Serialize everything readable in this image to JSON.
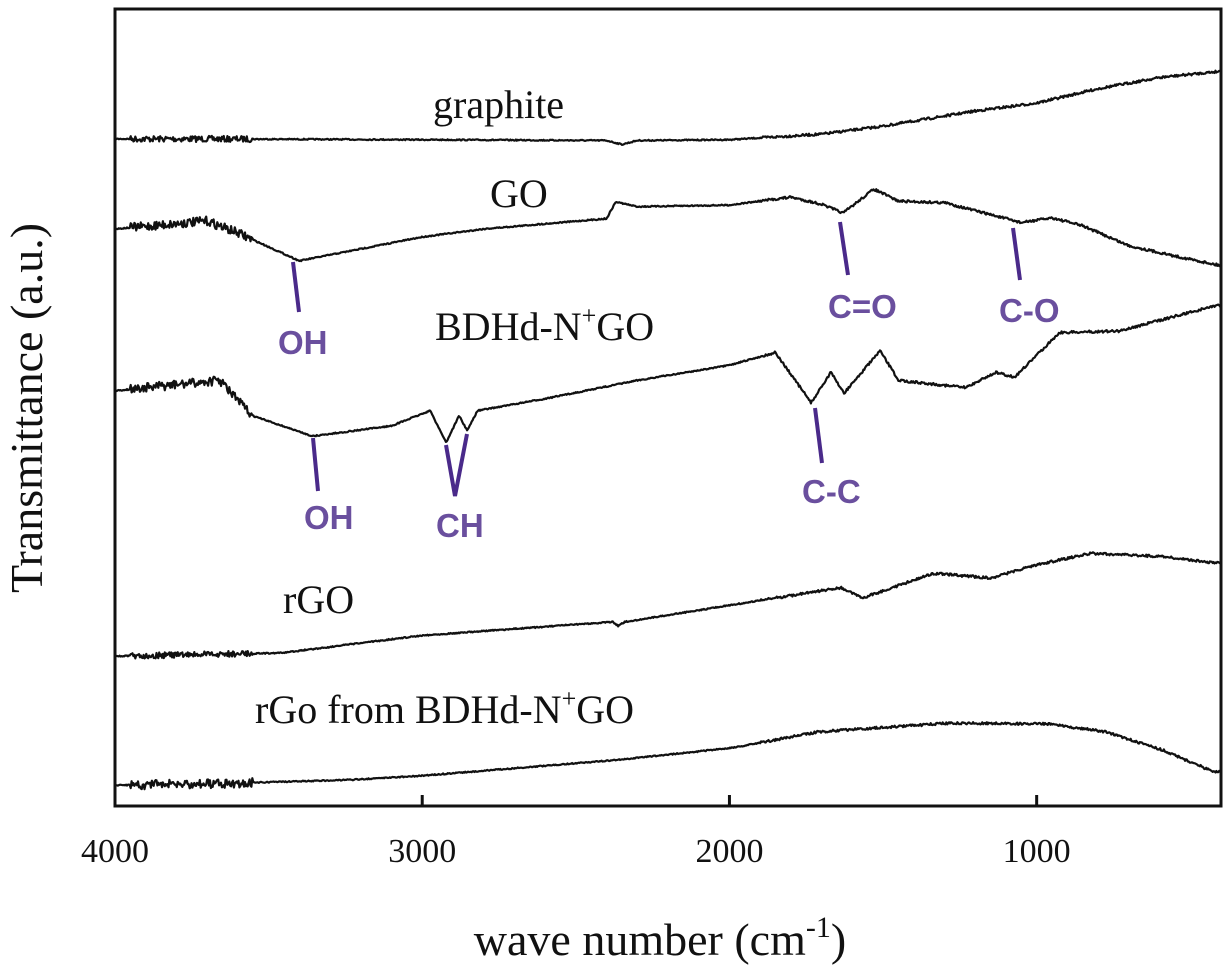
{
  "chart_data": {
    "type": "line",
    "title": "",
    "xlabel": "wave number (cm",
    "xlabel_sup": "-1",
    "xlabel_close": ")",
    "ylabel": "Transmittance (a.u.)",
    "xlim": [
      4000,
      400
    ],
    "x_reversed": true,
    "ylim": [
      0,
      100
    ],
    "y_ticks_shown": false,
    "grid": false,
    "legend": "none (inline series labels)",
    "x_ticks": [
      {
        "value": 4000,
        "label": "4000"
      },
      {
        "value": 3000,
        "label": "3000"
      },
      {
        "value": 2000,
        "label": "2000"
      },
      {
        "value": 1000,
        "label": "1000"
      }
    ],
    "line_color": "#111111",
    "annotation_line_color": "#4a2a8a",
    "annotation_text_color": "#6a4f9e",
    "series": [
      {
        "name": "graphite",
        "label_parts": [
          "graphite"
        ],
        "x": [
          4000,
          3700,
          3000,
          2400,
          2350,
          2300,
          2000,
          1700,
          1500,
          1200,
          1000,
          800,
          600,
          400
        ],
        "y": [
          83.7,
          83.7,
          83.6,
          83.5,
          83.0,
          83.5,
          83.6,
          84.3,
          85.3,
          87.2,
          88.2,
          90.0,
          91.4,
          92.2
        ]
      },
      {
        "name": "GO",
        "label_parts": [
          "GO"
        ],
        "x": [
          4000,
          3700,
          3600,
          3400,
          3200,
          3000,
          2800,
          2400,
          2370,
          2300,
          2000,
          1800,
          1700,
          1630,
          1600,
          1530,
          1450,
          1300,
          1100,
          1050,
          950,
          850,
          700,
          550,
          400
        ],
        "y": [
          72.4,
          73.4,
          71.9,
          68.4,
          69.9,
          71.4,
          72.4,
          73.7,
          75.8,
          75.2,
          75.4,
          76.4,
          75.5,
          74.4,
          75.3,
          77.4,
          75.9,
          75.7,
          73.7,
          73.2,
          73.8,
          72.8,
          70.3,
          69.0,
          67.8
        ]
      },
      {
        "name": "BDHd-N+GO",
        "label_parts": [
          "BDHd-N",
          "+",
          "GO"
        ],
        "x": [
          4000,
          3659,
          3555,
          3357,
          3100,
          2974,
          2922,
          2880,
          2854,
          2820,
          2600,
          2300,
          2000,
          1851,
          1734,
          1670,
          1627,
          1510,
          1449,
          1231,
          1134,
          1072,
          926,
          731,
          416
        ],
        "y": [
          52.1,
          53.4,
          49.0,
          46.4,
          47.7,
          49.6,
          45.6,
          49.0,
          47.1,
          49.6,
          51.1,
          53.4,
          55.3,
          56.9,
          50.6,
          54.4,
          51.8,
          57.1,
          53.4,
          52.5,
          54.4,
          53.8,
          59.4,
          59.6,
          62.8
        ]
      },
      {
        "name": "rGO",
        "label_parts": [
          "rGO"
        ],
        "x": [
          4000,
          3459,
          3000,
          2380,
          2362,
          2340,
          1638,
          1568,
          1335,
          1148,
          1008,
          822,
          588,
          425
        ],
        "y": [
          18.8,
          19.2,
          21.4,
          23.1,
          22.6,
          23.1,
          27.4,
          26.1,
          29.2,
          28.6,
          30.2,
          31.7,
          31.3,
          30.5
        ]
      },
      {
        "name": "rGo from BDHd-N+GO",
        "label_parts": [
          "rGo from BDHd-N",
          "+",
          "GO"
        ],
        "x": [
          4000,
          3575,
          3225,
          3000,
          2362,
          1990,
          1710,
          1288,
          961,
          775,
          588,
          425
        ],
        "y": [
          2.6,
          2.9,
          3.3,
          3.8,
          5.8,
          7.3,
          9.3,
          10.4,
          10.3,
          9.3,
          7.0,
          4.3
        ]
      }
    ],
    "annotations": [
      {
        "label": "OH",
        "series": "GO",
        "x": 3400
      },
      {
        "label": "C=O",
        "series": "GO",
        "x": 1630
      },
      {
        "label": "C-O",
        "series": "GO",
        "x": 1070
      },
      {
        "label": "OH",
        "series": "BDHd-N+GO",
        "x": 3357
      },
      {
        "label": "CH",
        "series": "BDHd-N+GO",
        "x": 2890
      },
      {
        "label": "C-C",
        "series": "BDHd-N+GO",
        "x": 1734
      }
    ]
  }
}
